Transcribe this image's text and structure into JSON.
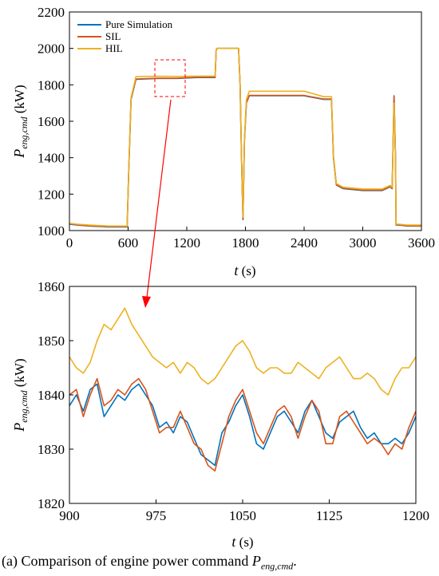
{
  "chart_data": [
    {
      "type": "line",
      "xlabel": {
        "var": "t",
        "unit": " (s)"
      },
      "ylabel": {
        "var": "P",
        "sub": "eng,cmd",
        "unit": " (kW)"
      },
      "xlim": [
        0,
        3600
      ],
      "ylim": [
        1000,
        2200
      ],
      "xticks": [
        "0",
        "600",
        "1200",
        "1800",
        "2400",
        "3000",
        "3600"
      ],
      "yticks": [
        "1000",
        "1200",
        "1400",
        "1600",
        "1800",
        "2000",
        "2200"
      ],
      "legend": {
        "placement": "top-left",
        "entries": [
          "Pure Simulation",
          "SIL",
          "HIL"
        ]
      },
      "series": [
        {
          "name": "Pure Simulation",
          "color": "#0072BD",
          "x": [
            0,
            80,
            200,
            400,
            590,
            605,
            630,
            680,
            900,
            1100,
            1300,
            1490,
            1500,
            1510,
            1730,
            1745,
            1760,
            1775,
            1790,
            1810,
            1840,
            2000,
            2200,
            2400,
            2600,
            2680,
            2700,
            2730,
            2800,
            3000,
            3200,
            3280,
            3300,
            3320,
            3335,
            3340,
            3355,
            3370,
            3450,
            3600
          ],
          "y": [
            1035,
            1030,
            1025,
            1020,
            1020,
            1300,
            1720,
            1830,
            1835,
            1835,
            1840,
            1840,
            1990,
            2000,
            2000,
            1800,
            1400,
            1060,
            1500,
            1700,
            1740,
            1740,
            1740,
            1740,
            1720,
            1720,
            1400,
            1250,
            1230,
            1220,
            1220,
            1240,
            1230,
            1740,
            1400,
            1030,
            1030,
            1030,
            1025,
            1025
          ]
        },
        {
          "name": "SIL",
          "color": "#D95319",
          "x": [
            0,
            80,
            200,
            400,
            590,
            605,
            630,
            680,
            900,
            1100,
            1300,
            1490,
            1500,
            1510,
            1730,
            1745,
            1760,
            1775,
            1790,
            1810,
            1840,
            2000,
            2200,
            2400,
            2600,
            2680,
            2700,
            2730,
            2800,
            3000,
            3200,
            3280,
            3300,
            3320,
            3335,
            3340,
            3355,
            3370,
            3450,
            3600
          ],
          "y": [
            1038,
            1032,
            1026,
            1022,
            1022,
            1305,
            1725,
            1832,
            1836,
            1836,
            1842,
            1842,
            1992,
            2000,
            2000,
            1800,
            1400,
            1062,
            1500,
            1702,
            1742,
            1742,
            1742,
            1742,
            1722,
            1722,
            1400,
            1252,
            1232,
            1222,
            1222,
            1242,
            1232,
            1735,
            1400,
            1032,
            1032,
            1032,
            1026,
            1026
          ]
        },
        {
          "name": "HIL",
          "color": "#EDB120",
          "x": [
            0,
            80,
            200,
            400,
            590,
            605,
            630,
            680,
            900,
            1100,
            1300,
            1490,
            1500,
            1510,
            1730,
            1745,
            1760,
            1775,
            1790,
            1810,
            1840,
            2000,
            2200,
            2400,
            2600,
            2680,
            2700,
            2730,
            2800,
            3000,
            3200,
            3280,
            3300,
            3320,
            3335,
            3340,
            3355,
            3370,
            3450,
            3600
          ],
          "y": [
            1040,
            1035,
            1030,
            1025,
            1025,
            1310,
            1730,
            1845,
            1847,
            1846,
            1848,
            1848,
            1995,
            2000,
            2000,
            1805,
            1410,
            1075,
            1510,
            1720,
            1765,
            1765,
            1765,
            1765,
            1735,
            1735,
            1410,
            1258,
            1238,
            1228,
            1228,
            1248,
            1238,
            1700,
            1400,
            1035,
            1035,
            1035,
            1030,
            1030
          ]
        }
      ]
    },
    {
      "type": "line",
      "xlabel": {
        "var": "t",
        "unit": " (s)"
      },
      "ylabel": {
        "var": "P",
        "sub": "eng,cmd",
        "unit": " (kW)"
      },
      "xlim": [
        900,
        1200
      ],
      "ylim": [
        1820,
        1860
      ],
      "xticks": [
        "900",
        "975",
        "1050",
        "1125",
        "1200"
      ],
      "yticks": [
        "1820",
        "1830",
        "1840",
        "1850",
        "1860"
      ],
      "series": [
        {
          "name": "Pure Simulation",
          "color": "#0072BD",
          "x": [
            900,
            906,
            912,
            918,
            924,
            930,
            936,
            942,
            948,
            954,
            960,
            966,
            972,
            978,
            984,
            990,
            996,
            1002,
            1008,
            1014,
            1020,
            1026,
            1032,
            1038,
            1044,
            1050,
            1056,
            1062,
            1068,
            1074,
            1080,
            1086,
            1092,
            1098,
            1104,
            1110,
            1116,
            1122,
            1128,
            1134,
            1140,
            1146,
            1152,
            1158,
            1164,
            1170,
            1176,
            1182,
            1188,
            1194,
            1200
          ],
          "y": [
            1838,
            1840,
            1837,
            1841,
            1842,
            1836,
            1838,
            1840,
            1839,
            1841,
            1842,
            1840,
            1838,
            1834,
            1835,
            1833,
            1836,
            1835,
            1832,
            1829,
            1828,
            1827,
            1833,
            1835,
            1838,
            1840,
            1836,
            1831,
            1830,
            1833,
            1836,
            1837,
            1835,
            1833,
            1837,
            1839,
            1836,
            1833,
            1832,
            1835,
            1836,
            1837,
            1834,
            1832,
            1833,
            1831,
            1831,
            1832,
            1831,
            1833,
            1836
          ]
        },
        {
          "name": "SIL",
          "color": "#D95319",
          "x": [
            900,
            906,
            912,
            918,
            924,
            930,
            936,
            942,
            948,
            954,
            960,
            966,
            972,
            978,
            984,
            990,
            996,
            1002,
            1008,
            1014,
            1020,
            1026,
            1032,
            1038,
            1044,
            1050,
            1056,
            1062,
            1068,
            1074,
            1080,
            1086,
            1092,
            1098,
            1104,
            1110,
            1116,
            1122,
            1128,
            1134,
            1140,
            1146,
            1152,
            1158,
            1164,
            1170,
            1176,
            1182,
            1188,
            1194,
            1200
          ],
          "y": [
            1840,
            1841,
            1836,
            1840,
            1843,
            1838,
            1839,
            1841,
            1840,
            1842,
            1843,
            1841,
            1837,
            1833,
            1834,
            1834,
            1837,
            1834,
            1831,
            1830,
            1827,
            1826,
            1831,
            1836,
            1839,
            1841,
            1837,
            1833,
            1831,
            1834,
            1837,
            1838,
            1836,
            1832,
            1836,
            1839,
            1837,
            1831,
            1831,
            1836,
            1837,
            1835,
            1833,
            1831,
            1832,
            1831,
            1829,
            1831,
            1830,
            1834,
            1837
          ]
        },
        {
          "name": "HIL",
          "color": "#EDB120",
          "x": [
            900,
            906,
            912,
            918,
            924,
            930,
            936,
            942,
            948,
            954,
            960,
            966,
            972,
            978,
            984,
            990,
            996,
            1002,
            1008,
            1014,
            1020,
            1026,
            1032,
            1038,
            1044,
            1050,
            1056,
            1062,
            1068,
            1074,
            1080,
            1086,
            1092,
            1098,
            1104,
            1110,
            1116,
            1122,
            1128,
            1134,
            1140,
            1146,
            1152,
            1158,
            1164,
            1170,
            1176,
            1182,
            1188,
            1194,
            1200
          ],
          "y": [
            1847,
            1845,
            1844,
            1846,
            1850,
            1853,
            1852,
            1854,
            1856,
            1853,
            1851,
            1849,
            1847,
            1846,
            1845,
            1846,
            1844,
            1846,
            1845,
            1843,
            1842,
            1843,
            1845,
            1847,
            1849,
            1850,
            1848,
            1845,
            1844,
            1845,
            1845,
            1844,
            1844,
            1846,
            1845,
            1844,
            1843,
            1845,
            1846,
            1847,
            1845,
            1843,
            1843,
            1844,
            1843,
            1841,
            1840,
            1843,
            1845,
            1845,
            1847
          ]
        }
      ]
    }
  ],
  "caption": {
    "label": "(a)",
    "text": " Comparison of engine power command  ",
    "var": "P",
    "sub": "eng,cmd",
    "tail": "."
  }
}
